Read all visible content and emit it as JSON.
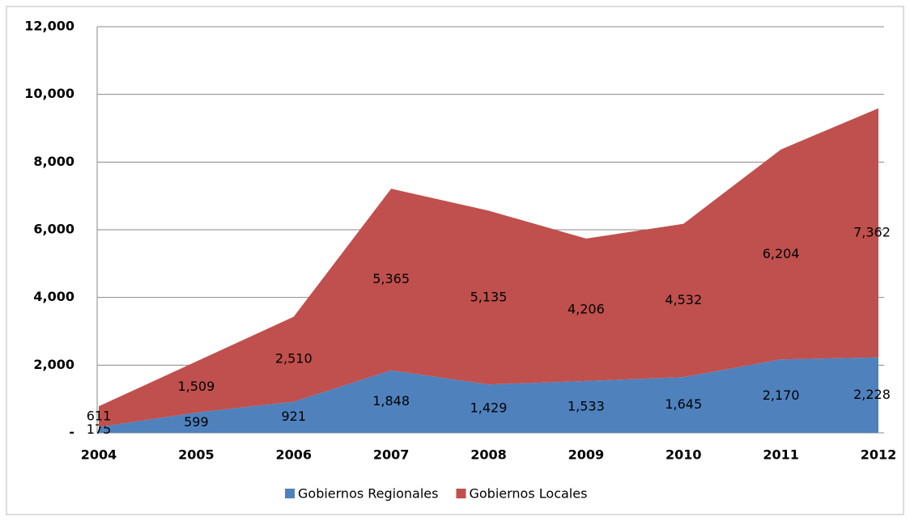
{
  "chart_data": {
    "type": "stacked_area",
    "categories": [
      "2004",
      "2005",
      "2006",
      "2007",
      "2008",
      "2009",
      "2010",
      "2011",
      "2012"
    ],
    "series": [
      {
        "name": "Gobiernos Regionales",
        "color": "#4f81bd",
        "values": [
          175,
          599,
          921,
          1848,
          1429,
          1533,
          1645,
          2170,
          2228
        ],
        "value_labels": [
          "175",
          "599",
          "921",
          "1,848",
          "1,429",
          "1,533",
          "1,645",
          "2,170",
          "2,228"
        ]
      },
      {
        "name": "Gobiernos Locales",
        "color": "#c0504d",
        "values": [
          611,
          1509,
          2510,
          5365,
          5135,
          4206,
          4532,
          6204,
          7362
        ],
        "value_labels": [
          "611",
          "1,509",
          "2,510",
          "5,365",
          "5,135",
          "4,206",
          "4,532",
          "6,204",
          "7,362"
        ]
      }
    ],
    "ylim": [
      0,
      12000
    ],
    "yticks": [
      {
        "value": 0,
        "label": "-"
      },
      {
        "value": 2000,
        "label": "2,000"
      },
      {
        "value": 4000,
        "label": "4,000"
      },
      {
        "value": 6000,
        "label": "6,000"
      },
      {
        "value": 8000,
        "label": "8,000"
      },
      {
        "value": 10000,
        "label": "10,000"
      },
      {
        "value": 12000,
        "label": "12,000"
      }
    ],
    "grid": true,
    "legend": "bottom"
  }
}
